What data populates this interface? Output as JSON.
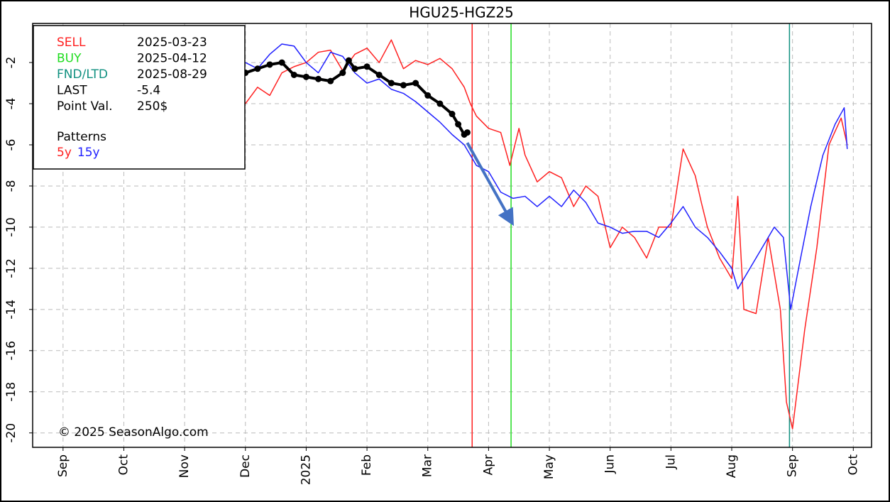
{
  "chart_data": {
    "type": "line",
    "title": "HGU25-HGZ25",
    "xlim": [
      -0.5,
      13.3
    ],
    "xticks": [
      {
        "value": 0,
        "label": "Sep"
      },
      {
        "value": 1,
        "label": "Oct"
      },
      {
        "value": 2,
        "label": "Nov"
      },
      {
        "value": 3,
        "label": "Dec"
      },
      {
        "value": 4,
        "label": "2025"
      },
      {
        "value": 5,
        "label": "Feb"
      },
      {
        "value": 6,
        "label": "Mar"
      },
      {
        "value": 7,
        "label": "Apr"
      },
      {
        "value": 8,
        "label": "May"
      },
      {
        "value": 9,
        "label": "Jun"
      },
      {
        "value": 10,
        "label": "Jul"
      },
      {
        "value": 11,
        "label": "Aug"
      },
      {
        "value": 12,
        "label": "Sep"
      },
      {
        "value": 13,
        "label": "Oct"
      }
    ],
    "ylim": [
      -20.7,
      -0.1
    ],
    "yticks": [
      -2,
      -4,
      -6,
      -8,
      -10,
      -12,
      -14,
      -16,
      -18,
      -20
    ],
    "grid": true,
    "series": [
      {
        "name": "5y",
        "color": "#ff2020",
        "x": [
          3.0,
          3.2,
          3.4,
          3.6,
          3.8,
          4.0,
          4.2,
          4.4,
          4.6,
          4.8,
          5.0,
          5.2,
          5.4,
          5.6,
          5.8,
          6.0,
          6.2,
          6.4,
          6.6,
          6.7,
          6.8,
          7.0,
          7.2,
          7.35,
          7.5,
          7.6,
          7.8,
          8.0,
          8.2,
          8.4,
          8.6,
          8.8,
          9.0,
          9.2,
          9.4,
          9.6,
          9.8,
          10.0,
          10.2,
          10.4,
          10.5,
          10.6,
          10.8,
          11.0,
          11.1,
          11.2,
          11.4,
          11.6,
          11.8,
          11.9,
          12.0,
          12.2,
          12.4,
          12.6,
          12.8,
          12.9
        ],
        "values": [
          -4.0,
          -3.2,
          -3.6,
          -2.5,
          -2.2,
          -2.0,
          -1.5,
          -1.4,
          -2.4,
          -1.6,
          -1.3,
          -2.0,
          -0.9,
          -2.3,
          -1.9,
          -2.1,
          -1.8,
          -2.3,
          -3.2,
          -4.0,
          -4.6,
          -5.2,
          -5.4,
          -7.0,
          -5.2,
          -6.5,
          -7.8,
          -7.3,
          -7.6,
          -9.0,
          -8.0,
          -8.5,
          -11.0,
          -10.0,
          -10.5,
          -11.5,
          -10.0,
          -10.0,
          -6.2,
          -7.5,
          -8.8,
          -10.0,
          -11.5,
          -12.5,
          -8.5,
          -14.0,
          -14.2,
          -10.5,
          -14.0,
          -18.5,
          -19.8,
          -15.0,
          -11.0,
          -6.0,
          -4.7,
          -6.0
        ]
      },
      {
        "name": "15y",
        "color": "#2020ff",
        "x": [
          3.0,
          3.2,
          3.4,
          3.6,
          3.8,
          4.0,
          4.2,
          4.4,
          4.6,
          4.8,
          5.0,
          5.2,
          5.4,
          5.6,
          5.8,
          6.0,
          6.2,
          6.4,
          6.6,
          6.8,
          7.0,
          7.2,
          7.4,
          7.6,
          7.8,
          8.0,
          8.2,
          8.4,
          8.6,
          8.8,
          9.0,
          9.2,
          9.4,
          9.6,
          9.8,
          10.0,
          10.2,
          10.4,
          10.6,
          10.8,
          11.0,
          11.1,
          11.3,
          11.5,
          11.7,
          11.85,
          11.97,
          12.1,
          12.3,
          12.5,
          12.7,
          12.85,
          12.9
        ],
        "values": [
          -2.0,
          -2.3,
          -1.6,
          -1.1,
          -1.2,
          -2.0,
          -2.5,
          -1.5,
          -1.7,
          -2.5,
          -3.0,
          -2.8,
          -3.3,
          -3.5,
          -3.9,
          -4.4,
          -4.9,
          -5.5,
          -6.0,
          -7.0,
          -7.3,
          -8.3,
          -8.6,
          -8.5,
          -9.0,
          -8.5,
          -9.0,
          -8.2,
          -8.8,
          -9.8,
          -10.0,
          -10.3,
          -10.2,
          -10.2,
          -10.5,
          -9.8,
          -9.0,
          -10.0,
          -10.5,
          -11.2,
          -12.0,
          -13.0,
          -12.0,
          -11.0,
          -10.0,
          -10.5,
          -14.0,
          -12.0,
          -9.0,
          -6.5,
          -5.0,
          -4.2,
          -6.2
        ]
      },
      {
        "color": "#000000",
        "markers": true,
        "x": [
          3.0,
          3.2,
          3.4,
          3.6,
          3.8,
          4.0,
          4.2,
          4.4,
          4.6,
          4.7,
          4.8,
          5.0,
          5.2,
          5.4,
          5.6,
          5.8,
          6.0,
          6.2,
          6.4,
          6.5,
          6.6,
          6.65
        ],
        "values": [
          -2.5,
          -2.3,
          -2.1,
          -2.0,
          -2.6,
          -2.7,
          -2.8,
          -2.9,
          -2.5,
          -1.9,
          -2.3,
          -2.2,
          -2.6,
          -3.0,
          -3.1,
          -3.0,
          -3.6,
          -4.0,
          -4.5,
          -5.0,
          -5.5,
          -5.4
        ]
      }
    ],
    "vlines": [
      {
        "x": 6.73,
        "color": "#ff2020"
      },
      {
        "x": 7.37,
        "color": "#20dd20"
      },
      {
        "x": 11.95,
        "color": "#109080"
      }
    ],
    "arrow": {
      "x": [
        6.65,
        7.37
      ],
      "y": [
        -5.9,
        -9.7
      ],
      "color": "#4472c4"
    },
    "info_rows": [
      {
        "label": "SELL",
        "value": "2025-03-23",
        "color": "#ff2020"
      },
      {
        "label": "BUY",
        "value": "2025-04-12",
        "color": "#20dd20"
      },
      {
        "label": "FND/LTD",
        "value": "2025-08-29",
        "color": "#109080"
      },
      {
        "label": "LAST",
        "value": -5.4,
        "color": "#000000"
      },
      {
        "label": "Point Val.",
        "value": "250$",
        "color": "#000000"
      }
    ],
    "patterns_label": "Patterns",
    "copyright": "© 2025 SeasonAlgo.com"
  }
}
